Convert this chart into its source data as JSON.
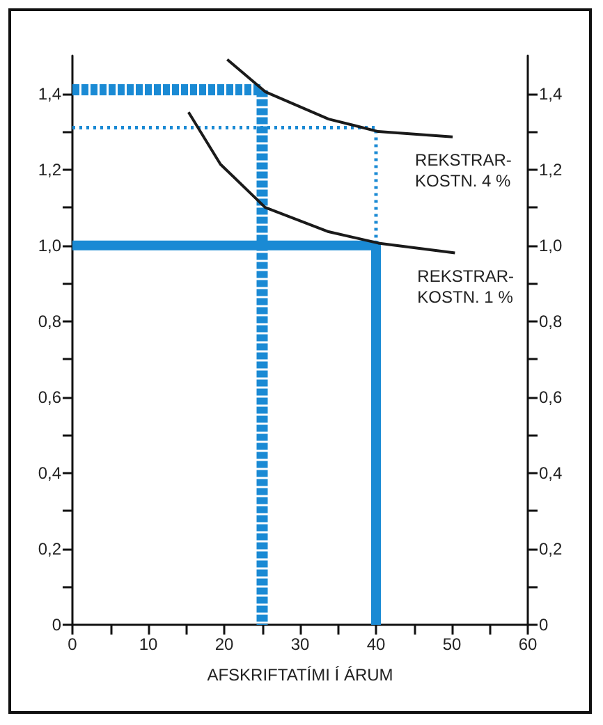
{
  "chart_data": {
    "type": "line",
    "xlabel": "AFSKRIFTATÍMI Í ÁRUM",
    "xlim": [
      0,
      60
    ],
    "xticks": [
      0,
      {
        "value": 5,
        "label": null
      },
      10,
      {
        "value": 15,
        "label": null
      },
      20,
      {
        "value": 25,
        "label": null
      },
      30,
      {
        "value": 35,
        "label": null
      },
      40,
      {
        "value": 45,
        "label": null
      },
      50,
      {
        "value": 55,
        "label": null
      },
      60
    ],
    "ylim": [
      0,
      1.5
    ],
    "yticks": [
      0,
      {
        "value": 0.1,
        "label": null
      },
      {
        "value": 0.2,
        "label": "0,2"
      },
      {
        "value": 0.3,
        "label": null
      },
      {
        "value": 0.4,
        "label": "0,4"
      },
      {
        "value": 0.5,
        "label": null
      },
      {
        "value": 0.6,
        "label": "0,6"
      },
      {
        "value": 0.7,
        "label": null
      },
      {
        "value": 0.8,
        "label": "0,8"
      },
      {
        "value": 0.9,
        "label": null
      },
      {
        "value": 1.0,
        "label": "1,0"
      },
      {
        "value": 1.1,
        "label": null
      },
      {
        "value": 1.2,
        "label": "1,2"
      },
      {
        "value": 1.3,
        "label": null
      },
      {
        "value": 1.4,
        "label": "1,4"
      }
    ],
    "y2lim": [
      0,
      1.5
    ],
    "y2ticks": [
      0,
      {
        "value": 0.1,
        "label": null
      },
      {
        "value": 0.2,
        "label": "0,2"
      },
      {
        "value": 0.3,
        "label": null
      },
      {
        "value": 0.4,
        "label": "0,4"
      },
      {
        "value": 0.5,
        "label": null
      },
      {
        "value": 0.6,
        "label": "0,6"
      },
      {
        "value": 0.7,
        "label": null
      },
      {
        "value": 0.8,
        "label": "0,8"
      },
      {
        "value": 0.9,
        "label": null
      },
      {
        "value": 1.0,
        "label": "1,0"
      },
      {
        "value": 1.1,
        "label": null
      },
      {
        "value": 1.2,
        "label": "1,2"
      },
      {
        "value": 1.3,
        "label": null
      },
      {
        "value": 1.4,
        "label": "1,4"
      }
    ],
    "grid": false,
    "marker": "none",
    "series": [
      {
        "name": "REKSTRAR-\nKOSTN. 4 %",
        "color": "#1a1a1a",
        "line_style": "solid",
        "x": [
          20.4,
          25.4,
          33.75,
          40.3,
          50.1
        ],
        "values": [
          1.49,
          1.405,
          1.333,
          1.3,
          1.286
        ]
      },
      {
        "name": "REKSTRAR-\nKOSTN. 1 %",
        "color": "#1a1a1a",
        "line_style": "solid",
        "x": [
          15.3,
          19.5,
          25.4,
          33.75,
          40.3,
          50.4
        ],
        "values": [
          1.351,
          1.214,
          1.1,
          1.036,
          1.006,
          0.98
        ]
      },
      {
        "color": "#1a8ad4",
        "line_style": "dashed",
        "x": [
          0,
          25,
          25
        ],
        "values": [
          1.41,
          1.41,
          0
        ]
      },
      {
        "color": "#1a8ad4",
        "line_style": "dotted",
        "x": [
          0,
          40,
          40
        ],
        "values": [
          1.31,
          1.31,
          1.0
        ]
      },
      {
        "color": "#1a8ad4",
        "line_style": "solid",
        "x": [
          0,
          40,
          40
        ],
        "values": [
          1.0,
          1.0,
          0
        ]
      }
    ]
  }
}
